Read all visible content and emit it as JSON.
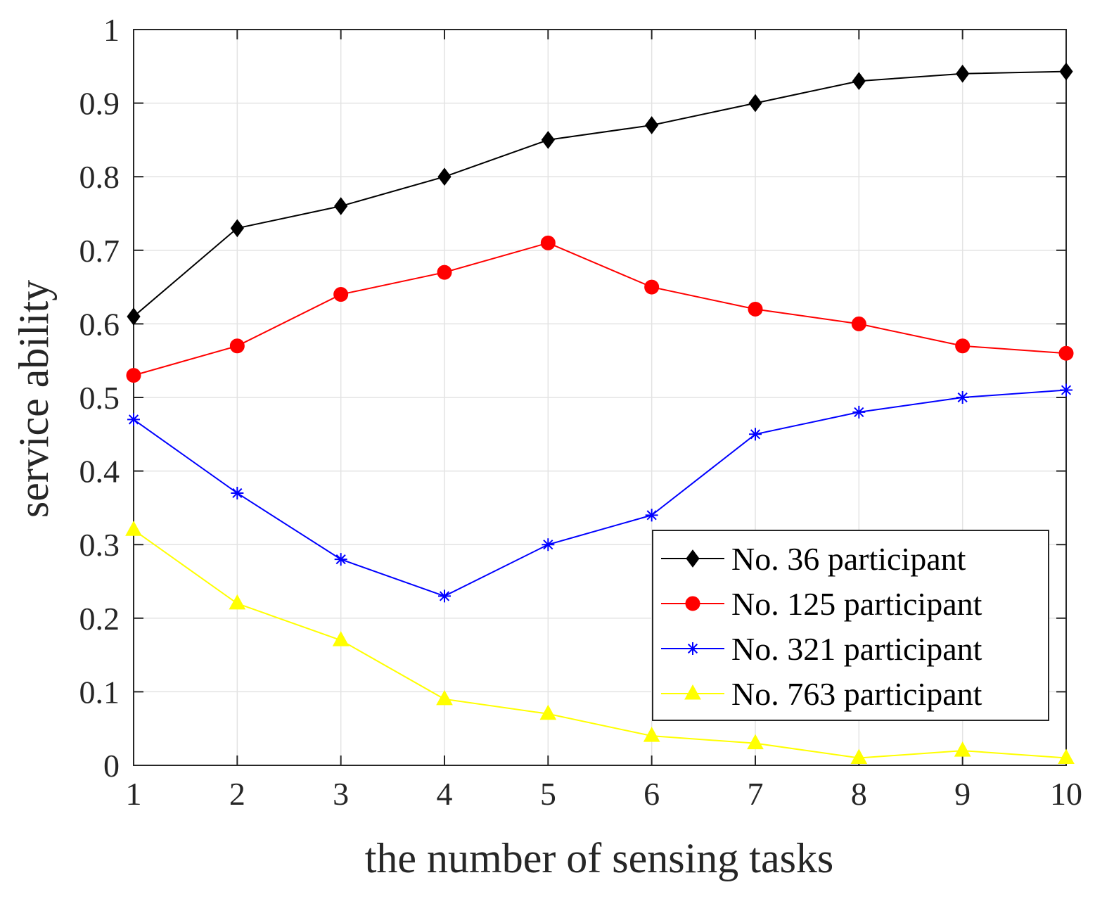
{
  "chart_data": {
    "type": "line",
    "title": "",
    "xlabel": "the number of sensing tasks",
    "ylabel": "service ability",
    "x": [
      1,
      2,
      3,
      4,
      5,
      6,
      7,
      8,
      9,
      10
    ],
    "xlim": [
      1,
      10
    ],
    "ylim": [
      0,
      1
    ],
    "xticks": [
      "1",
      "2",
      "3",
      "4",
      "5",
      "6",
      "7",
      "8",
      "9",
      "10"
    ],
    "yticks": [
      "0",
      "0.1",
      "0.2",
      "0.3",
      "0.4",
      "0.5",
      "0.6",
      "0.7",
      "0.8",
      "0.9",
      "1"
    ],
    "grid": true,
    "legend_position": "bottom-right",
    "series": [
      {
        "name": "No. 36 participant",
        "color": "#000000",
        "marker": "diamond",
        "values": [
          0.61,
          0.73,
          0.76,
          0.8,
          0.85,
          0.87,
          0.9,
          0.93,
          0.94,
          0.943
        ]
      },
      {
        "name": "No. 125 participant",
        "color": "#ff0000",
        "marker": "circle",
        "values": [
          0.53,
          0.57,
          0.64,
          0.67,
          0.71,
          0.65,
          0.62,
          0.6,
          0.57,
          0.56
        ]
      },
      {
        "name": "No. 321 participant",
        "color": "#0000ff",
        "marker": "asterisk",
        "values": [
          0.47,
          0.37,
          0.28,
          0.23,
          0.3,
          0.34,
          0.45,
          0.48,
          0.5,
          0.51
        ]
      },
      {
        "name": "No. 763 participant",
        "color": "#ffff00",
        "marker": "triangle",
        "values": [
          0.32,
          0.22,
          0.17,
          0.09,
          0.07,
          0.04,
          0.03,
          0.01,
          0.02,
          0.01
        ]
      }
    ]
  }
}
